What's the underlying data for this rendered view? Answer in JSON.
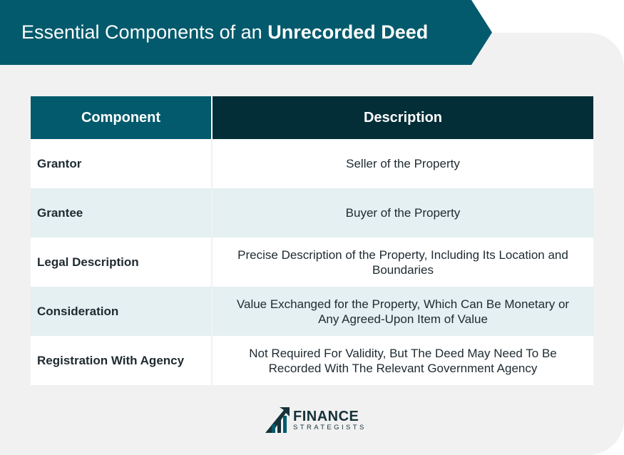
{
  "header": {
    "title_regular": "Essential Components of an",
    "title_bold": "Unrecorded Deed"
  },
  "table": {
    "columns": [
      "Component",
      "Description"
    ],
    "rows": [
      {
        "component": "Grantor",
        "description": "Seller of the Property"
      },
      {
        "component": "Grantee",
        "description": "Buyer of the Property"
      },
      {
        "component": "Legal Description",
        "description": "Precise Description of the Property, Including Its Location and Boundaries"
      },
      {
        "component": "Consideration",
        "description": "Value Exchanged for the Property, Which Can Be Monetary or Any Agreed-Upon Item of Value"
      },
      {
        "component": "Registration With Agency",
        "description": "Not Required For Validity, But The Deed May Need To Be Recorded With The Relevant Government Agency"
      }
    ]
  },
  "logo": {
    "main": "FINANCE",
    "sub": "STRATEGISTS",
    "icon": "finance-strategists-logo-icon"
  },
  "colors": {
    "banner": "#035a6c",
    "header_dark": "#032e37",
    "row_alt": "#e4f0f1",
    "card_bg": "#f1f1f1"
  }
}
